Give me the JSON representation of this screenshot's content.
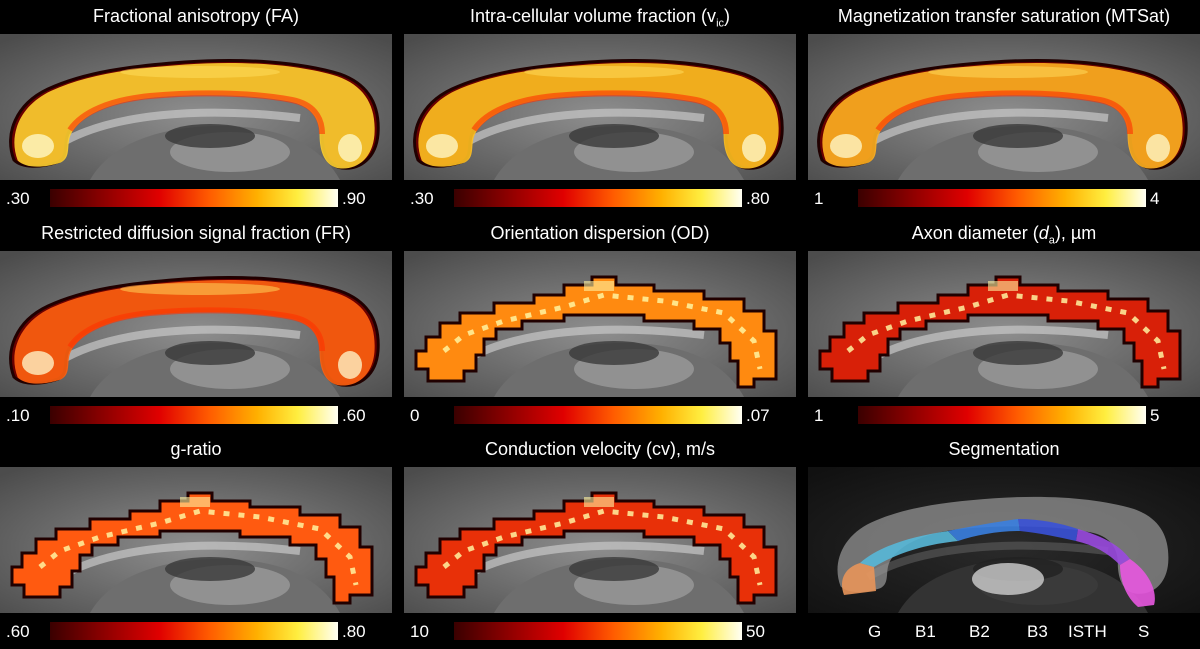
{
  "panels": [
    {
      "title_main": "Fractional anisotropy (FA)",
      "min": ".30",
      "max": ".90",
      "style": "smooth",
      "tint": "#ffd030"
    },
    {
      "title_main": "Intra-cellular volume fraction (v",
      "title_sub": "ic",
      "title_end": ")",
      "min": ".30",
      "max": ".80",
      "style": "smooth",
      "tint": "#ffc020"
    },
    {
      "title_main": "Magnetization transfer saturation (MTSat)",
      "min": "1",
      "max": "4",
      "style": "smooth",
      "tint": "#ffb020"
    },
    {
      "title_main": "Restricted diffusion signal fraction (FR)",
      "min": ".10",
      "max": ".60",
      "style": "smooth",
      "tint": "#ff6010"
    },
    {
      "title_main": "Orientation dispersion (OD)",
      "min": "0",
      "max": ".07",
      "style": "blocky",
      "tint": "#ff8a10"
    },
    {
      "title_main": "Axon diameter (",
      "title_italic": "d",
      "title_sub": "a",
      "title_end": "), µm",
      "min": "1",
      "max": "5",
      "style": "blocky",
      "tint": "#d82008"
    },
    {
      "title_main": "g-ratio",
      "min": ".60",
      "max": ".80",
      "style": "blocky",
      "tint": "#ff5a10"
    },
    {
      "title_main": "Conduction velocity (cv), m/s",
      "min": "10",
      "max": "50",
      "style": "blocky",
      "tint": "#e83008"
    }
  ],
  "segmentation": {
    "title": "Segmentation",
    "labels": [
      "G",
      "B1",
      "B2",
      "B3",
      "ISTH",
      "S"
    ],
    "colors": {
      "G": "#e8955a",
      "B1": "#58b8d8",
      "B2": "#3a80e0",
      "B3": "#3a52d8",
      "ISTH": "#9a4ae0",
      "S": "#e858e0"
    }
  }
}
